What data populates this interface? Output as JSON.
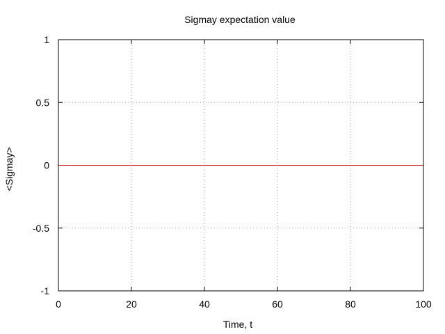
{
  "chart_data": {
    "type": "line",
    "title": "Sigmay expectation value",
    "xlabel": "Time, t",
    "ylabel": "<Sigmay>",
    "xlim": [
      0,
      100
    ],
    "ylim": [
      -1,
      1
    ],
    "xticks": [
      0,
      20,
      40,
      60,
      80,
      100
    ],
    "yticks": [
      -1,
      -0.5,
      0,
      0.5,
      1
    ],
    "xtick_labels": [
      "0",
      "20",
      "40",
      "60",
      "80",
      "100"
    ],
    "ytick_labels": [
      "-1",
      "-0.5",
      "0",
      "0.5",
      "1"
    ],
    "grid": true,
    "legend": "none",
    "series": [
      {
        "color": "#cc0000",
        "x": [
          0,
          100
        ],
        "y": [
          0,
          0
        ]
      }
    ]
  },
  "colors": {
    "line": "#cc0000",
    "grid": "#a0a0a0",
    "axis": "#000000"
  }
}
